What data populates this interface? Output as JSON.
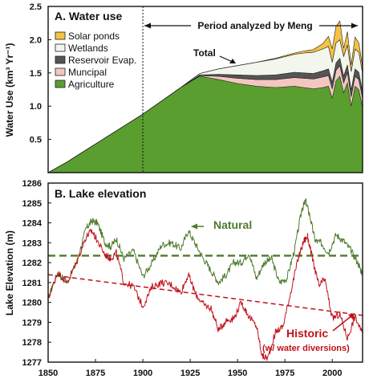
{
  "chart_data": [
    {
      "type": "area",
      "title": "A.  Water use",
      "ylabel": "Water Use  (km³ Yr⁻¹)",
      "xlim": [
        1850,
        2016
      ],
      "ylim": [
        0,
        2.5
      ],
      "yticks": [
        "0.5",
        "1.0",
        "1.5",
        "2.0",
        "2.5"
      ],
      "ytick_values": [
        0.5,
        1.0,
        1.5,
        2.0,
        2.5
      ],
      "stacked": true,
      "legend_position": "top-left",
      "annotations": {
        "period": "Period analyzed by Meng",
        "total": "Total",
        "period_start_year": 1900
      },
      "x": [
        1850,
        1860,
        1870,
        1880,
        1890,
        1900,
        1910,
        1920,
        1930,
        1940,
        1950,
        1960,
        1970,
        1980,
        1985,
        1990,
        1995,
        1998,
        2000,
        2002,
        2004,
        2006,
        2008,
        2010,
        2012,
        2014,
        2016
      ],
      "series": [
        {
          "name": "Agriculture",
          "color": "#5a9e2f",
          "values": [
            0.0,
            0.16,
            0.34,
            0.52,
            0.7,
            0.88,
            1.08,
            1.28,
            1.45,
            1.4,
            1.34,
            1.3,
            1.28,
            1.3,
            1.28,
            1.26,
            1.28,
            1.3,
            1.12,
            1.38,
            1.45,
            1.2,
            1.35,
            1.0,
            1.3,
            1.25,
            0.98
          ]
        },
        {
          "name": "Muncipal",
          "color": "#f3c7c0",
          "values": [
            0,
            0,
            0,
            0,
            0,
            0,
            0,
            0,
            0.01,
            0.05,
            0.08,
            0.1,
            0.12,
            0.13,
            0.14,
            0.15,
            0.16,
            0.16,
            0.14,
            0.16,
            0.16,
            0.15,
            0.16,
            0.14,
            0.15,
            0.15,
            0.14
          ]
        },
        {
          "name": "Reservoir Evap.",
          "color": "#555555",
          "values": [
            0,
            0,
            0,
            0,
            0,
            0,
            0,
            0,
            0.01,
            0.03,
            0.05,
            0.06,
            0.07,
            0.08,
            0.08,
            0.08,
            0.09,
            0.1,
            0.1,
            0.11,
            0.11,
            0.1,
            0.11,
            0.1,
            0.11,
            0.11,
            0.1
          ]
        },
        {
          "name": "Wetlands",
          "color": "#f2f6ec",
          "values": [
            0,
            0,
            0,
            0,
            0,
            0,
            0,
            0,
            0.02,
            0.08,
            0.14,
            0.2,
            0.24,
            0.27,
            0.3,
            0.32,
            0.33,
            0.34,
            0.3,
            0.3,
            0.28,
            0.3,
            0.3,
            0.28,
            0.3,
            0.3,
            0.28
          ]
        },
        {
          "name": "Solar ponds",
          "color": "#f5c243",
          "values": [
            0,
            0,
            0,
            0,
            0,
            0,
            0,
            0,
            0,
            0,
            0,
            0,
            0.01,
            0.02,
            0.03,
            0.04,
            0.08,
            0.15,
            0.2,
            0.25,
            0.28,
            0.12,
            0.2,
            0.1,
            0.18,
            0.14,
            0.1
          ]
        }
      ]
    },
    {
      "type": "line",
      "title": "B.  Lake elevation",
      "ylabel": "Lake  Elevation  (m)",
      "xlim": [
        1850,
        2016
      ],
      "ylim": [
        1277,
        1286
      ],
      "xticks": [
        "1850",
        "1875",
        "1900",
        "1925",
        "1950",
        "1975",
        "2000"
      ],
      "xtick_values": [
        1850,
        1875,
        1900,
        1925,
        1950,
        1975,
        2000
      ],
      "yticks": [
        "1277",
        "1278",
        "1279",
        "1280",
        "1281",
        "1282",
        "1283",
        "1284",
        "1285",
        "1286"
      ],
      "ytick_values": [
        1277,
        1278,
        1279,
        1280,
        1281,
        1282,
        1283,
        1284,
        1285,
        1286
      ],
      "series": [
        {
          "name": "Natural",
          "color": "#4f7a2c",
          "x": [
            1850,
            1855,
            1860,
            1865,
            1870,
            1873,
            1876,
            1880,
            1883,
            1886,
            1890,
            1895,
            1900,
            1905,
            1910,
            1915,
            1920,
            1924,
            1928,
            1932,
            1936,
            1940,
            1944,
            1948,
            1952,
            1956,
            1960,
            1964,
            1968,
            1972,
            1976,
            1980,
            1984,
            1986,
            1988,
            1991,
            1994,
            1998,
            2002,
            2006,
            2010,
            2014,
            2016
          ],
          "values": [
            1280.2,
            1281.5,
            1281.0,
            1282.0,
            1283.7,
            1284.1,
            1284.0,
            1283.0,
            1282.8,
            1283.2,
            1282.2,
            1282.6,
            1281.3,
            1282.0,
            1282.9,
            1283.0,
            1282.7,
            1283.6,
            1282.9,
            1282.2,
            1281.6,
            1281.0,
            1281.4,
            1282.0,
            1282.0,
            1282.5,
            1281.2,
            1282.0,
            1282.2,
            1281.0,
            1281.2,
            1282.6,
            1284.7,
            1285.1,
            1284.4,
            1283.1,
            1283.0,
            1282.5,
            1283.4,
            1283.1,
            1282.6,
            1281.9,
            1281.4
          ]
        },
        {
          "name": "Historic",
          "color": "#c0121b",
          "x": [
            1850,
            1855,
            1860,
            1865,
            1870,
            1873,
            1876,
            1880,
            1883,
            1886,
            1890,
            1895,
            1900,
            1905,
            1910,
            1915,
            1920,
            1924,
            1928,
            1932,
            1936,
            1940,
            1944,
            1948,
            1952,
            1956,
            1960,
            1963,
            1966,
            1970,
            1974,
            1978,
            1982,
            1985,
            1987,
            1990,
            1993,
            1996,
            2000,
            2004,
            2008,
            2012,
            2016
          ],
          "values": [
            1280.2,
            1281.5,
            1281.0,
            1282.0,
            1283.3,
            1283.6,
            1283.1,
            1282.4,
            1282.2,
            1282.5,
            1281.0,
            1280.8,
            1279.8,
            1280.8,
            1281.0,
            1280.9,
            1280.5,
            1281.4,
            1280.4,
            1279.9,
            1279.7,
            1278.6,
            1279.1,
            1279.2,
            1280.0,
            1279.3,
            1278.8,
            1277.3,
            1277.2,
            1278.5,
            1278.8,
            1280.5,
            1282.2,
            1283.1,
            1283.3,
            1282.0,
            1280.8,
            1281.2,
            1279.2,
            1279.4,
            1278.2,
            1279.3,
            1278.4
          ]
        }
      ],
      "reference_lines": [
        {
          "kind": "mean",
          "color": "#4f7a2c",
          "x": [
            1850,
            2016
          ],
          "values": [
            1282.35,
            1282.35
          ]
        },
        {
          "kind": "trend",
          "color": "#c0121b",
          "x": [
            1850,
            2016
          ],
          "values": [
            1281.4,
            1279.35
          ]
        }
      ],
      "labels": {
        "natural": "Natural",
        "historic": "Historic",
        "historic_sub": "(w/ water diversions)"
      }
    }
  ]
}
